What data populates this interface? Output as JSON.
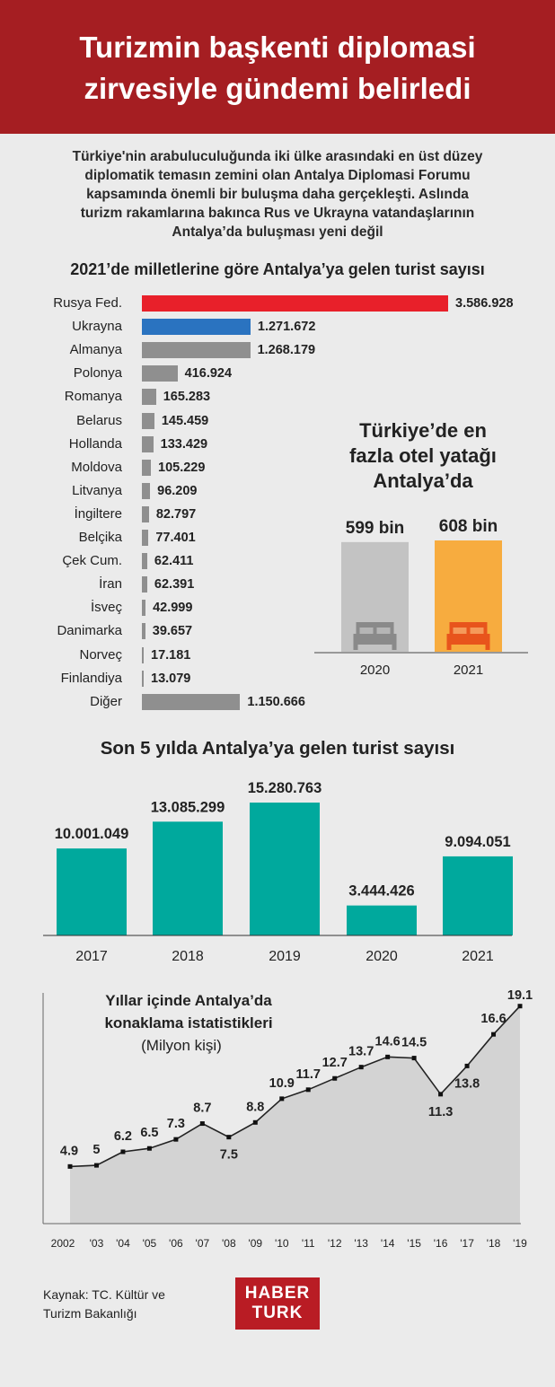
{
  "header": {
    "line1": "Turizmin başkenti diplomasi",
    "line2": "zirvesiyle gündemi belirledi"
  },
  "intro": [
    "Türkiye'nin arabuluculuğunda iki ülke arasındaki en üst düzey",
    "diplomatik temasın zemini olan Antalya Diplomasi Forumu",
    "kapsamında önemli bir buluşma daha gerçekleşti. Aslında",
    "turizm rakamlarına bakınca Rus ve Ukrayna vatandaşlarının",
    "Antalya’da buluşması yeni değil"
  ],
  "colors": {
    "header": "#a51e22",
    "russia": "#e8202a",
    "ukraine": "#2a73c0",
    "other": "#8f8f8f",
    "teal": "#00a99d",
    "bed2020": "#c3c3c3",
    "bed2021": "#f7ac3f",
    "area": "#d3d3d3"
  },
  "chart_data": [
    {
      "type": "bar",
      "orientation": "horizontal",
      "title": "2021’de milletlerine göre Antalya’ya gelen turist sayısı",
      "categories": [
        "Rusya Fed.",
        "Ukrayna",
        "Almanya",
        "Polonya",
        "Romanya",
        "Belarus",
        "Hollanda",
        "Moldova",
        "Litvanya",
        "İngiltere",
        "Belçika",
        "Çek Cum.",
        "İran",
        "İsveç",
        "Danimarka",
        "Norveç",
        "Finlandiya",
        "Diğer"
      ],
      "values": [
        3586928,
        1271672,
        1268179,
        416924,
        165283,
        145459,
        133429,
        105229,
        96209,
        82797,
        77401,
        62411,
        62391,
        42999,
        39657,
        17181,
        13079,
        1150666
      ],
      "labels": [
        "3.586.928",
        "1.271.672",
        "1.268.179",
        "416.924",
        "165.283",
        "145.459",
        "133.429",
        "105.229",
        "96.209",
        "82.797",
        "77.401",
        "62.411",
        "62.391",
        "42.999",
        "39.657",
        "17.181",
        "13.079",
        "1.150.666"
      ]
    },
    {
      "type": "bar",
      "title_lines": [
        "Türkiye’de en",
        "fazla otel yatağı",
        "Antalya’da"
      ],
      "categories": [
        "2020",
        "2021"
      ],
      "values": [
        599,
        608
      ],
      "labels": [
        "599 bin",
        "608 bin"
      ],
      "icon": "bed-icon"
    },
    {
      "type": "bar",
      "title": "Son 5 yılda Antalya’ya gelen turist sayısı",
      "categories": [
        "2017",
        "2018",
        "2019",
        "2020",
        "2021"
      ],
      "values": [
        10001049,
        13085299,
        15280763,
        3444426,
        9094051
      ],
      "labels": [
        "10.001.049",
        "13.085.299",
        "15.280.763",
        "3.444.426",
        "9.094.051"
      ]
    },
    {
      "type": "area",
      "title_lines": [
        "Yıllar içinde Antalya’da",
        "konaklama istatistikleri"
      ],
      "subtitle": "(Milyon kişi)",
      "x": [
        "2002",
        "'03",
        "'04",
        "'05",
        "'06",
        "'07",
        "'08",
        "'09",
        "'10",
        "'11",
        "'12",
        "'13",
        "'14",
        "'15",
        "'16",
        "'17",
        "'18",
        "'19"
      ],
      "values": [
        4.9,
        5,
        6.2,
        6.5,
        7.3,
        8.7,
        7.5,
        8.8,
        10.9,
        11.7,
        12.7,
        13.7,
        14.6,
        14.5,
        11.3,
        13.8,
        16.6,
        19.1
      ],
      "labels": [
        "4.9",
        "5",
        "6.2",
        "6.5",
        "7.3",
        "8.7",
        "7.5",
        "8.8",
        "10.9",
        "11.7",
        "12.7",
        "13.7",
        "14.6",
        "14.5",
        "11.3",
        "13.8",
        "16.6",
        "19.1"
      ],
      "ylim": [
        0,
        20
      ]
    }
  ],
  "footer": {
    "source_line1": "Kaynak: TC. Kültür ve",
    "source_line2": "Turizm Bakanlığı",
    "logo_line1": "HABER",
    "logo_line2": "TURK"
  }
}
